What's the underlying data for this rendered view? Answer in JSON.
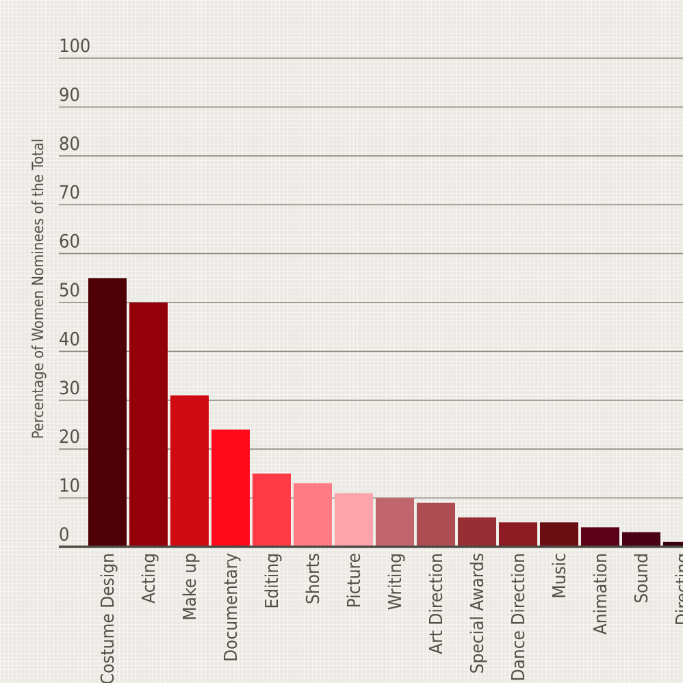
{
  "chart_data": {
    "type": "bar",
    "title": "",
    "xlabel": "",
    "ylabel": "Percentage of Women Nominees of the Total",
    "ylim": [
      0,
      100
    ],
    "yticks": [
      0,
      10,
      20,
      30,
      40,
      50,
      60,
      70,
      80,
      90,
      100
    ],
    "grid": true,
    "categories": [
      "Costume Design",
      "Acting",
      "Make up",
      "Documentary",
      "Editing",
      "Shorts",
      "Picture",
      "Writing",
      "Art Direction",
      "Special Awards",
      "Dance Direction",
      "Music",
      "Animation",
      "Sound",
      "Directing"
    ],
    "values": [
      55,
      50,
      31,
      24,
      15,
      13,
      11,
      10,
      9,
      6,
      5,
      5,
      4,
      3,
      1
    ],
    "colors": [
      "#4d0006",
      "#940009",
      "#cf0a13",
      "#ff0a1a",
      "#ff3a47",
      "#ff7c86",
      "#fca3ab",
      "#c2666d",
      "#ad4d51",
      "#962e35",
      "#8c1b24",
      "#6b0e14",
      "#5a0018",
      "#4a0016",
      "#3a0010"
    ]
  }
}
